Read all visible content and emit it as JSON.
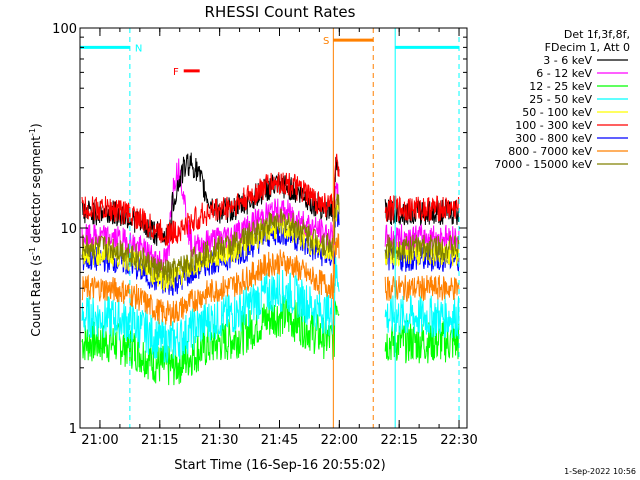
{
  "chart_data": {
    "type": "line",
    "title": "RHESSI Count Rates",
    "xlabel": "Start Time (16-Sep-16 20:55:02)",
    "ylabel_main": "Count Rate (s",
    "ylabel_sup1": "-1",
    "ylabel_mid": " detector segment",
    "ylabel_sup2": "-1",
    "ylabel_end": ")",
    "y_scale": "log",
    "ylim": [
      1,
      100
    ],
    "xlim_minutes": [
      0,
      97
    ],
    "x_ticks": [
      {
        "label": "21:00",
        "m": 5
      },
      {
        "label": "21:15",
        "m": 20
      },
      {
        "label": "21:30",
        "m": 35
      },
      {
        "label": "21:45",
        "m": 50
      },
      {
        "label": "22:00",
        "m": 65
      },
      {
        "label": "22:15",
        "m": 80
      },
      {
        "label": "22:30",
        "m": 95
      }
    ],
    "y_ticks": [
      {
        "label": "1",
        "v": 1
      },
      {
        "label": "10",
        "v": 10
      },
      {
        "label": "100",
        "v": 100
      }
    ],
    "legend_header": [
      "Det 1f,3f,8f,",
      "FDecim 1, Att 0"
    ],
    "series": [
      {
        "name": "3 - 6 keV",
        "color": "#000000",
        "base": 12
      },
      {
        "name": "6 - 12 keV",
        "color": "#ff00ff",
        "base": 9
      },
      {
        "name": "12 - 25 keV",
        "color": "#00ff00",
        "base": 2.7
      },
      {
        "name": "25 - 50 keV",
        "color": "#00ffff",
        "base": 3.6
      },
      {
        "name": "50 - 100 keV",
        "color": "#ffff00",
        "base": 7.5
      },
      {
        "name": "100 - 300 keV",
        "color": "#ff0000",
        "base": 12.5
      },
      {
        "name": "300 - 800 keV",
        "color": "#0000ff",
        "base": 7
      },
      {
        "name": "800 - 7000 keV",
        "color": "#ff8000",
        "base": 5
      },
      {
        "name": "7000 - 15000 keV",
        "color": "#808000",
        "base": 8
      }
    ],
    "gap_minutes": [
      65,
      76
    ],
    "annotations": [
      {
        "label": "N",
        "color": "#00ffff",
        "start": 0,
        "end": 12.5,
        "level": 80
      },
      {
        "label": "N",
        "color": "#00ffff",
        "start": 79,
        "end": 95,
        "level": 80
      },
      {
        "label": "S",
        "color": "#ff8000",
        "start": 63.5,
        "end": 73.5,
        "level": 87
      },
      {
        "label": "F",
        "color": "#ff0000",
        "start": 26,
        "end": 30,
        "level": 61
      }
    ],
    "timestamp": "1-Sep-2022 10:56"
  }
}
